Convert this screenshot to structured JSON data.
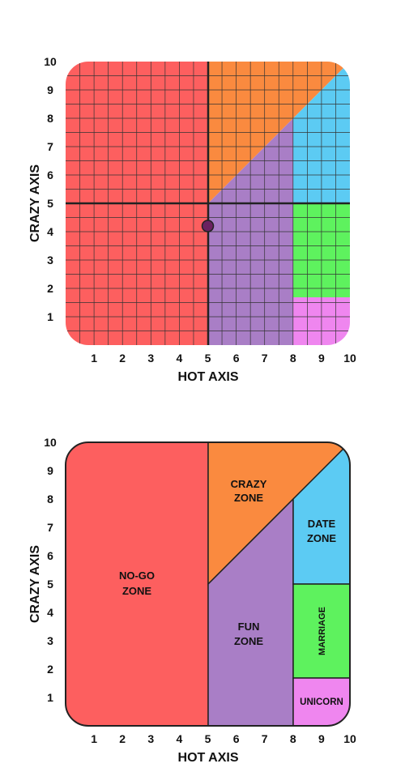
{
  "colors": {
    "red": "#fd5f5f",
    "orange": "#fa8a3f",
    "purple": "#a97ec6",
    "blue": "#5ccbf3",
    "green": "#5ef25e",
    "pink": "#ef86ef",
    "marker": "#6b2160",
    "line": "#222222"
  },
  "axes": {
    "x_title": "HOT AXIS",
    "y_title": "CRAZY AXIS",
    "x_ticks": [
      "1",
      "2",
      "3",
      "4",
      "5",
      "6",
      "7",
      "8",
      "9",
      "10"
    ],
    "y_ticks": [
      "1",
      "2",
      "3",
      "4",
      "5",
      "6",
      "7",
      "8",
      "9",
      "10"
    ]
  },
  "zones": {
    "nogo_line1": "NO-GO",
    "nogo_line2": "ZONE",
    "crazy_line1": "CRAZY",
    "crazy_line2": "ZONE",
    "fun_line1": "FUN",
    "fun_line2": "ZONE",
    "date_line1": "DATE",
    "date_line2": "ZONE",
    "marriage": "MARRIAGE",
    "unicorn": "UNICORN"
  },
  "point": {
    "hot": 5,
    "crazy": 4.2
  }
}
